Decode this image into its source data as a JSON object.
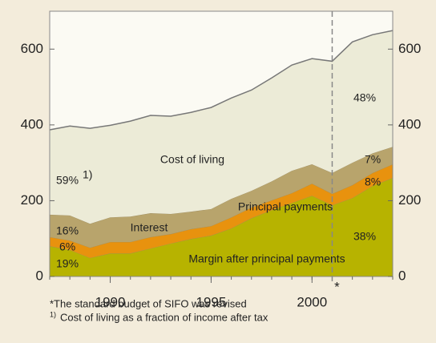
{
  "chart_data": {
    "type": "stacked_area",
    "x": [
      1987,
      1988,
      1989,
      1990,
      1991,
      1992,
      1993,
      1994,
      1995,
      1996,
      1997,
      1998,
      1999,
      2000,
      2001,
      2002,
      2003,
      2004
    ],
    "series": [
      {
        "name": "Margin after principal payments",
        "color": "#b7b300",
        "values": [
          80,
          70,
          49,
          61,
          61,
          74,
          87,
          99,
          108,
          127,
          154,
          175,
          194,
          213,
          188,
          207,
          239,
          260
        ]
      },
      {
        "name": "Principal payments",
        "color": "#e8920e",
        "values": [
          24,
          25,
          27,
          30,
          30,
          30,
          25,
          26,
          25,
          29,
          28,
          26,
          26,
          32,
          30,
          34,
          34,
          36
        ]
      },
      {
        "name": "Interest",
        "color": "#b8a46c",
        "values": [
          59,
          66,
          63,
          65,
          67,
          63,
          53,
          46,
          45,
          49,
          44,
          50,
          59,
          51,
          55,
          59,
          52,
          46
        ]
      },
      {
        "name": "Cost of living",
        "color": "#ecebd7",
        "values": [
          224,
          236,
          252,
          243,
          252,
          258,
          258,
          262,
          268,
          266,
          266,
          273,
          279,
          279,
          295,
          319,
          313,
          307
        ]
      }
    ],
    "xlim": [
      1987,
      2004
    ],
    "xticks": [
      1990,
      1995,
      2000
    ],
    "ylim": [
      0,
      700
    ],
    "yticks": [
      0,
      200,
      400,
      600
    ],
    "right_axis": true,
    "vline": {
      "x": 2001,
      "label": "*"
    },
    "annotations": [
      "59%",
      "16%",
      "6%",
      "19%",
      "48%",
      "7%",
      "8%",
      "38%"
    ],
    "note_marker": "1)",
    "footnotes": [
      "*The standard budget of SIFO was revised",
      "Cost of living as a fraction of income after tax"
    ]
  }
}
